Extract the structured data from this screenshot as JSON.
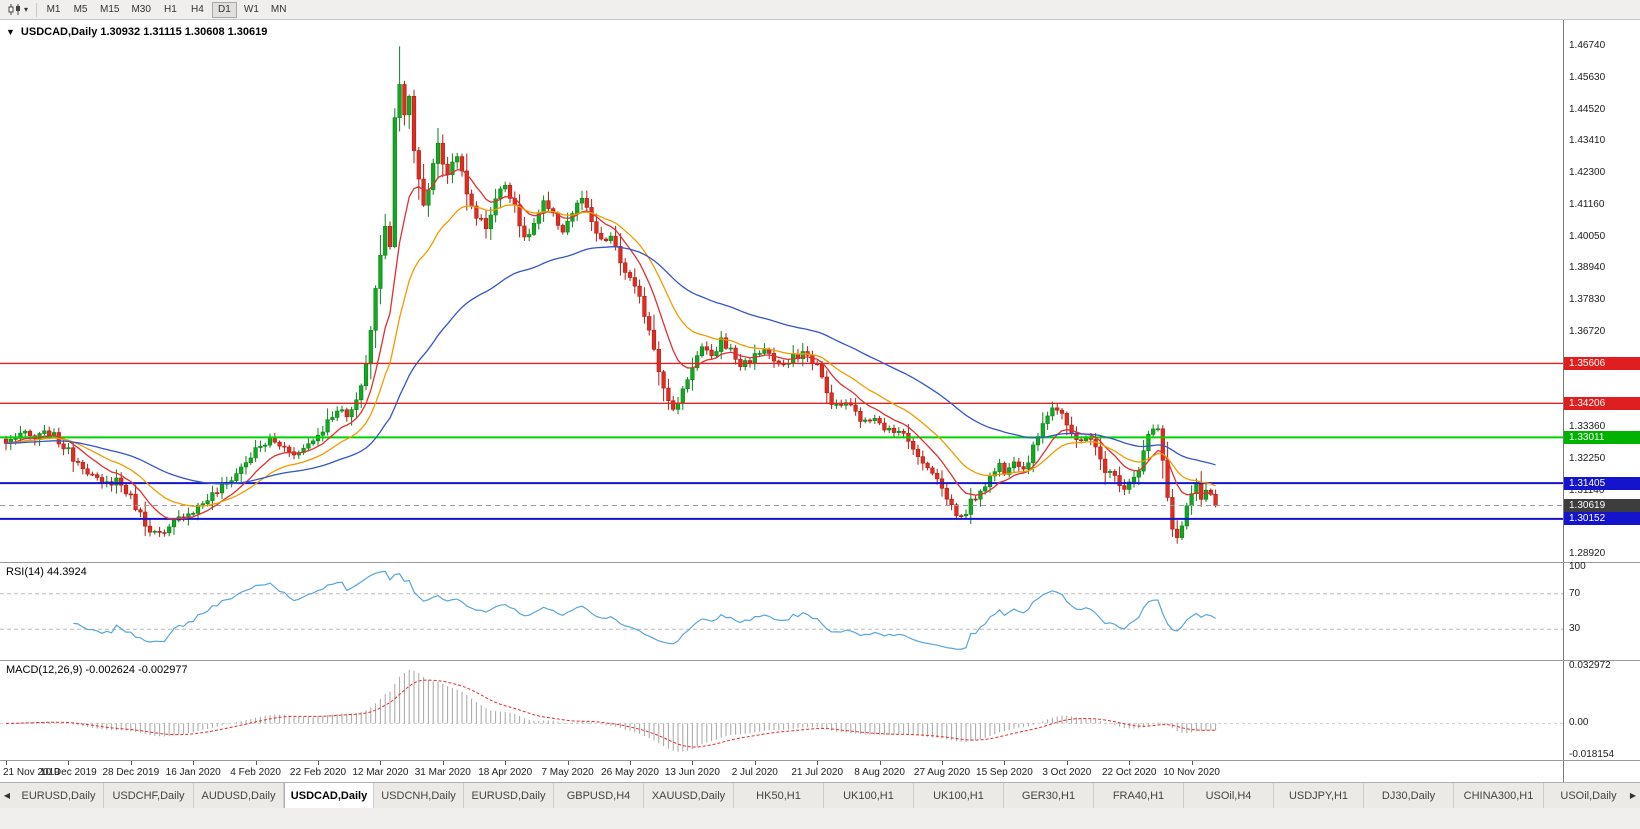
{
  "toolbar": {
    "chart_type_icon": "candlestick-chart-icon",
    "dropdown_caret": "▾",
    "timeframes": [
      "M1",
      "M5",
      "M15",
      "M30",
      "H1",
      "H4",
      "D1",
      "W1",
      "MN"
    ],
    "active_timeframe": "D1"
  },
  "chart_header": {
    "symbol": "USDCAD,Daily",
    "open": "1.30932",
    "high": "1.31115",
    "low": "1.30608",
    "close": "1.30619",
    "title_text": "USDCAD,Daily 1.30932 1.31115 1.30608 1.30619",
    "dropdown_icon": "▼"
  },
  "price_scale": {
    "ticks": [
      "1.46740",
      "1.45630",
      "1.44520",
      "1.43410",
      "1.42300",
      "1.41160",
      "1.40050",
      "1.38940",
      "1.37830",
      "1.36720",
      "1.33360",
      "1.32250",
      "1.31140",
      "1.28920"
    ],
    "badges": [
      {
        "value": 1.35606,
        "label": "1.35606",
        "badge_color": "#df1f1f",
        "line": {
          "color": "#e22222",
          "width": 1.4,
          "style": "solid"
        }
      },
      {
        "value": 1.34206,
        "label": "1.34206",
        "badge_color": "#df1f1f",
        "line": {
          "color": "#e22222",
          "width": 1.4,
          "style": "solid"
        }
      },
      {
        "value": 1.33011,
        "label": "1.33011",
        "badge_color": "#00b300",
        "line": {
          "color": "#00d300",
          "width": 2,
          "style": "solid"
        }
      },
      {
        "value": 1.31405,
        "label": "1.31405",
        "badge_color": "#1414cc",
        "line": {
          "color": "#1414cc",
          "width": 2,
          "style": "solid"
        }
      },
      {
        "value": 1.30619,
        "label": "1.30619",
        "badge_color": "#3d3d3d",
        "line": {
          "color": "#9b9b9b",
          "width": 1,
          "style": "dashed"
        }
      },
      {
        "value": 1.30152,
        "label": "1.30152",
        "badge_color": "#1414cc",
        "line": {
          "color": "#1414cc",
          "width": 2,
          "style": "solid"
        }
      }
    ]
  },
  "chart_data": {
    "type": "candlestick",
    "symbol": "USDCAD",
    "timeframe": "Daily",
    "num_candles": 253,
    "ylim": [
      1.28636,
      1.47663
    ],
    "last_close": 1.30619,
    "extremes": {
      "high": 1.4674,
      "high_index": 82,
      "low": 1.2928,
      "low_index": 244
    },
    "keypoints": [
      [
        0,
        1.328
      ],
      [
        3,
        1.3315
      ],
      [
        6,
        1.3295
      ],
      [
        9,
        1.332
      ],
      [
        12,
        1.327
      ],
      [
        14,
        1.323
      ],
      [
        16,
        1.3205
      ],
      [
        18,
        1.3165
      ],
      [
        20,
        1.313
      ],
      [
        23,
        1.3155
      ],
      [
        26,
        1.309
      ],
      [
        29,
        1.3
      ],
      [
        31,
        1.2965
      ],
      [
        33,
        1.2955
      ],
      [
        35,
        1.3
      ],
      [
        37,
        1.303
      ],
      [
        39,
        1.3045
      ],
      [
        42,
        1.3085
      ],
      [
        45,
        1.3125
      ],
      [
        48,
        1.3175
      ],
      [
        50,
        1.3215
      ],
      [
        52,
        1.3255
      ],
      [
        55,
        1.329
      ],
      [
        58,
        1.3265
      ],
      [
        61,
        1.3245
      ],
      [
        63,
        1.328
      ],
      [
        65,
        1.331
      ],
      [
        67,
        1.3355
      ],
      [
        69,
        1.3405
      ],
      [
        71,
        1.337
      ],
      [
        73,
        1.342
      ],
      [
        75,
        1.356
      ],
      [
        76,
        1.368
      ],
      [
        77,
        1.382
      ],
      [
        78,
        1.3935
      ],
      [
        79,
        1.405
      ],
      [
        80,
        1.398
      ],
      [
        81,
        1.442
      ],
      [
        82,
        1.4555
      ],
      [
        83,
        1.444
      ],
      [
        84,
        1.449
      ],
      [
        85,
        1.43
      ],
      [
        86,
        1.421
      ],
      [
        87,
        1.412
      ],
      [
        88,
        1.417
      ],
      [
        89,
        1.427
      ],
      [
        90,
        1.434
      ],
      [
        91,
        1.425
      ],
      [
        92,
        1.423
      ],
      [
        94,
        1.43
      ],
      [
        96,
        1.415
      ],
      [
        98,
        1.408
      ],
      [
        100,
        1.404
      ],
      [
        102,
        1.414
      ],
      [
        104,
        1.419
      ],
      [
        106,
        1.412
      ],
      [
        108,
        1.399
      ],
      [
        110,
        1.405
      ],
      [
        112,
        1.412
      ],
      [
        114,
        1.4075
      ],
      [
        116,
        1.403
      ],
      [
        118,
        1.409
      ],
      [
        120,
        1.414
      ],
      [
        122,
        1.405
      ],
      [
        124,
        1.3985
      ],
      [
        126,
        1.4005
      ],
      [
        128,
        1.3915
      ],
      [
        130,
        1.3855
      ],
      [
        132,
        1.3785
      ],
      [
        134,
        1.3685
      ],
      [
        136,
        1.3545
      ],
      [
        138,
        1.3425
      ],
      [
        139,
        1.339
      ],
      [
        140,
        1.343
      ],
      [
        142,
        1.351
      ],
      [
        143,
        1.3555
      ],
      [
        145,
        1.3615
      ],
      [
        147,
        1.3575
      ],
      [
        149,
        1.3645
      ],
      [
        151,
        1.3605
      ],
      [
        153,
        1.3555
      ],
      [
        156,
        1.3585
      ],
      [
        158,
        1.3615
      ],
      [
        160,
        1.357
      ],
      [
        162,
        1.3545
      ],
      [
        164,
        1.358
      ],
      [
        166,
        1.36
      ],
      [
        168,
        1.357
      ],
      [
        169,
        1.3555
      ],
      [
        171,
        1.3455
      ],
      [
        173,
        1.3405
      ],
      [
        175,
        1.3425
      ],
      [
        177,
        1.3385
      ],
      [
        179,
        1.335
      ],
      [
        181,
        1.338
      ],
      [
        183,
        1.334
      ],
      [
        185,
        1.331
      ],
      [
        187,
        1.333
      ],
      [
        189,
        1.325
      ],
      [
        191,
        1.322
      ],
      [
        193,
        1.3185
      ],
      [
        195,
        1.312
      ],
      [
        197,
        1.306
      ],
      [
        199,
        1.3015
      ],
      [
        201,
        1.307
      ],
      [
        203,
        1.312
      ],
      [
        205,
        1.316
      ],
      [
        207,
        1.3205
      ],
      [
        208,
        1.3185
      ],
      [
        210,
        1.323
      ],
      [
        212,
        1.319
      ],
      [
        214,
        1.326
      ],
      [
        216,
        1.336
      ],
      [
        218,
        1.341
      ],
      [
        220,
        1.3385
      ],
      [
        221,
        1.333
      ],
      [
        223,
        1.329
      ],
      [
        225,
        1.331
      ],
      [
        227,
        1.326
      ],
      [
        229,
        1.319
      ],
      [
        231,
        1.316
      ],
      [
        233,
        1.313
      ],
      [
        234,
        1.315
      ],
      [
        236,
        1.319
      ],
      [
        238,
        1.331
      ],
      [
        240,
        1.333
      ],
      [
        241,
        1.321
      ],
      [
        242,
        1.309
      ],
      [
        243,
        1.299
      ],
      [
        244,
        1.2945
      ],
      [
        245,
        1.299
      ],
      [
        246,
        1.306
      ],
      [
        247,
        1.3095
      ],
      [
        248,
        1.3125
      ],
      [
        249,
        1.308
      ],
      [
        250,
        1.311
      ],
      [
        251,
        1.309
      ],
      [
        252,
        1.30619
      ]
    ],
    "moving_averages": [
      {
        "name": "fast-ma",
        "period": 10,
        "color": "#e03030"
      },
      {
        "name": "medium-ma",
        "period": 21,
        "color": "#f29b00"
      },
      {
        "name": "slow-ma",
        "period": 55,
        "color": "#3355cc"
      }
    ],
    "colors": {
      "up": "#12a822",
      "up_stroke": "#0b8317",
      "down": "#e22c20",
      "down_stroke": "#ad1d14",
      "macd_hist": "#a5a5a5",
      "macd_signal": "#e03030",
      "rsi_line": "#58a6da",
      "level_line": "#bcbcbc"
    },
    "x_labels": [
      {
        "i": 0,
        "label": "21 Nov 2019"
      },
      {
        "i": 13,
        "label": "10 Dec 2019"
      },
      {
        "i": 26,
        "label": "28 Dec 2019"
      },
      {
        "i": 39,
        "label": "16 Jan 2020"
      },
      {
        "i": 52,
        "label": "4 Feb 2020"
      },
      {
        "i": 65,
        "label": "22 Feb 2020"
      },
      {
        "i": 78,
        "label": "12 Mar 2020"
      },
      {
        "i": 91,
        "label": "31 Mar 2020"
      },
      {
        "i": 104,
        "label": "18 Apr 2020"
      },
      {
        "i": 117,
        "label": "7 May 2020"
      },
      {
        "i": 130,
        "label": "26 May 2020"
      },
      {
        "i": 143,
        "label": "13 Jun 2020"
      },
      {
        "i": 156,
        "label": "2 Jul 2020"
      },
      {
        "i": 169,
        "label": "21 Jul 2020"
      },
      {
        "i": 182,
        "label": "8 Aug 2020"
      },
      {
        "i": 195,
        "label": "27 Aug 2020"
      },
      {
        "i": 208,
        "label": "15 Sep 2020"
      },
      {
        "i": 221,
        "label": "3 Oct 2020"
      },
      {
        "i": 234,
        "label": "22 Oct 2020"
      },
      {
        "i": 247,
        "label": "10 Nov 2020"
      }
    ]
  },
  "rsi": {
    "label": "RSI(14) 44.3924",
    "period": 14,
    "current_value": "44.3924",
    "levels": [
      70,
      30
    ],
    "scale": [
      {
        "v": 100,
        "label": "100"
      },
      {
        "v": 70,
        "label": "70"
      },
      {
        "v": 30,
        "label": "30"
      }
    ]
  },
  "macd": {
    "label": "MACD(12,26,9) -0.002624 -0.002977",
    "fast": 12,
    "slow": 26,
    "signal": 9,
    "current_values": "-0.002624 -0.002977",
    "ylim": [
      -0.018154,
      0.032972
    ],
    "scale": [
      {
        "v": 0.032972,
        "label": "0.032972"
      },
      {
        "v": 0,
        "label": "0.00"
      },
      {
        "v": -0.018154,
        "label": "-0.018154"
      }
    ]
  },
  "tabs": {
    "left_arrow": "◀",
    "right_arrow": "▶",
    "items": [
      {
        "label": "EURUSD,Daily",
        "active": false
      },
      {
        "label": "USDCHF,Daily",
        "active": false
      },
      {
        "label": "AUDUSD,Daily",
        "active": false
      },
      {
        "label": "USDCAD,Daily",
        "active": true
      },
      {
        "label": "USDCNH,Daily",
        "active": false
      },
      {
        "label": "EURUSD,Daily",
        "active": false
      },
      {
        "label": "GBPUSD,H4",
        "active": false
      },
      {
        "label": "XAUUSD,Daily",
        "active": false
      },
      {
        "label": "HK50,H1",
        "active": false
      },
      {
        "label": "UK100,H1",
        "active": false
      },
      {
        "label": "UK100,H1",
        "active": false
      },
      {
        "label": "GER30,H1",
        "active": false
      },
      {
        "label": "FRA40,H1",
        "active": false
      },
      {
        "label": "USOil,H4",
        "active": false
      },
      {
        "label": "USDJPY,H1",
        "active": false
      },
      {
        "label": "DJ30,Daily",
        "active": false
      },
      {
        "label": "CHINA300,H1",
        "active": false
      },
      {
        "label": "USOil,Daily",
        "active": false
      }
    ]
  }
}
